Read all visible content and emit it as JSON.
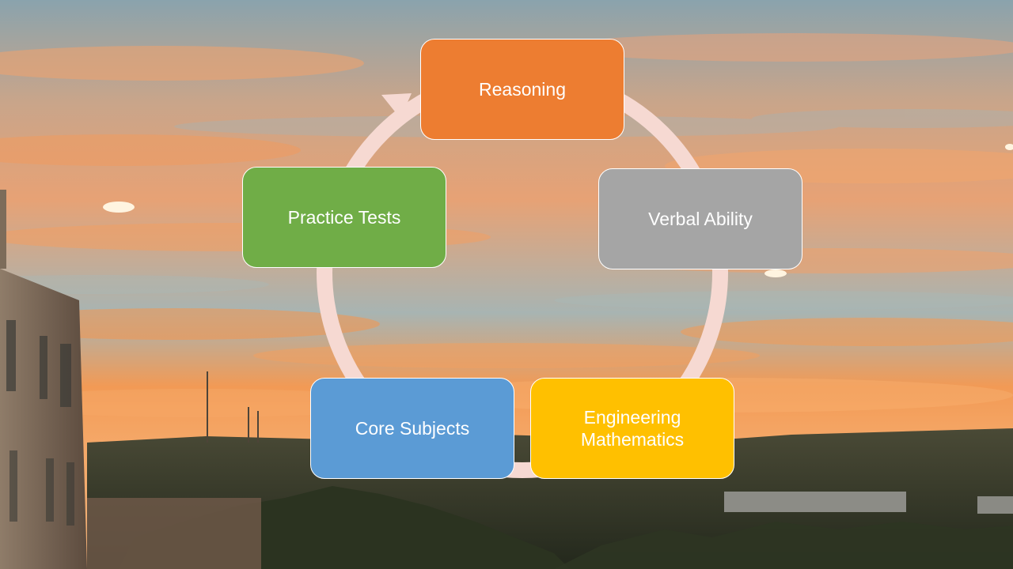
{
  "diagram": {
    "type": "cycle",
    "connector_color": "#f6d9d2",
    "nodes": [
      {
        "id": "reasoning",
        "label": "Reasoning",
        "color": "#ed7d31"
      },
      {
        "id": "verbal",
        "label": "Verbal Ability",
        "color": "#a5a5a5"
      },
      {
        "id": "engineering",
        "label": "Engineering\nMathematics",
        "color": "#ffc000"
      },
      {
        "id": "core",
        "label": "Core Subjects",
        "color": "#5b9bd5"
      },
      {
        "id": "practice",
        "label": "Practice Tests",
        "color": "#70ad47"
      }
    ]
  },
  "background": {
    "sky_colors": [
      "#7fa3b4",
      "#e99a63",
      "#f08a4a",
      "#f7a35c"
    ],
    "hill_color": "#3b3f2c",
    "building_color": "#6e5a49"
  }
}
